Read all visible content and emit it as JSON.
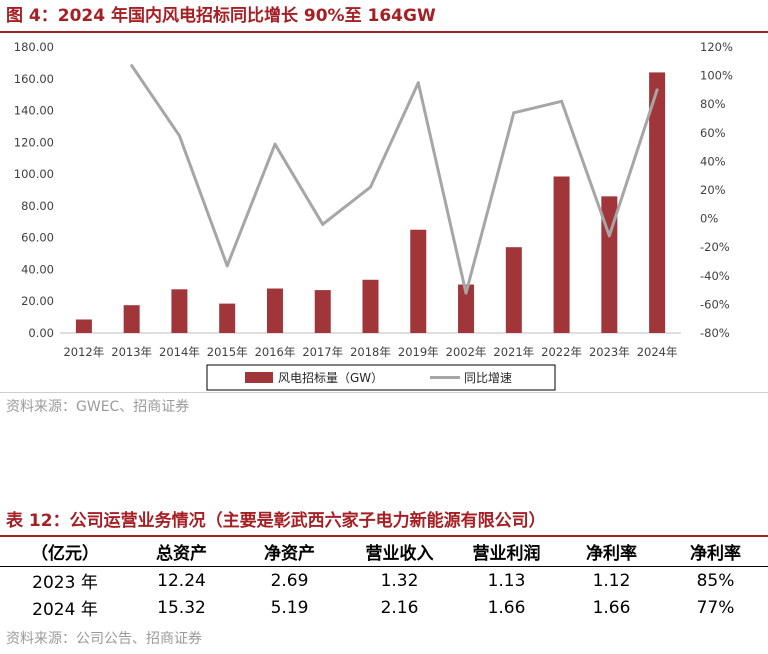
{
  "figure": {
    "title": "图 4：2024 年国内风电招标同比增长 90%至 164GW",
    "source": "资料来源：GWEC、招商证券"
  },
  "chart_data": {
    "type": "bar+line",
    "categories": [
      "2012年",
      "2013年",
      "2014年",
      "2015年",
      "2016年",
      "2017年",
      "2018年",
      "2019年",
      "2002年",
      "2021年",
      "2022年",
      "2023年",
      "2024年"
    ],
    "series": [
      {
        "name": "风电招标量（GW）",
        "type": "bar",
        "axis": "left",
        "values": [
          8.5,
          17.5,
          27.5,
          18.5,
          28.0,
          27.0,
          33.5,
          65.0,
          30.5,
          54.0,
          98.5,
          86.0,
          164.0
        ]
      },
      {
        "name": "同比增速",
        "type": "line",
        "axis": "right",
        "values": [
          null,
          107,
          58,
          -33,
          52,
          -4,
          22,
          95,
          -52,
          74,
          82,
          -12,
          90
        ]
      }
    ],
    "y_left": {
      "min": 0,
      "max": 180,
      "step": 20,
      "ticks": [
        "0.00",
        "20.00",
        "40.00",
        "60.00",
        "80.00",
        "100.00",
        "120.00",
        "140.00",
        "160.00",
        "180.00"
      ]
    },
    "y_right": {
      "min": -80,
      "max": 120,
      "step": 20,
      "ticks": [
        "-80%",
        "-60%",
        "-40%",
        "-20%",
        "0%",
        "20%",
        "40%",
        "60%",
        "80%",
        "100%",
        "120%"
      ]
    },
    "legend": {
      "position": "bottom",
      "items": [
        "风电招标量（GW）",
        "同比增速"
      ]
    },
    "colors": {
      "bar": "#a0353a",
      "line": "#a6a6a6",
      "title": "#a51f24"
    }
  },
  "table": {
    "title": "表 12：公司运营业务情况（主要是彰武西六家子电力新能源有限公司）",
    "headers": [
      "（亿元）",
      "总资产",
      "净资产",
      "营业收入",
      "营业利润",
      "净利率",
      "净利率"
    ],
    "rows": [
      [
        "2023 年",
        "12.24",
        "2.69",
        "1.32",
        "1.13",
        "1.12",
        "85%"
      ],
      [
        "2024 年",
        "15.32",
        "5.19",
        "2.16",
        "1.66",
        "1.66",
        "77%"
      ]
    ],
    "source": "资料来源：公司公告、招商证券"
  }
}
